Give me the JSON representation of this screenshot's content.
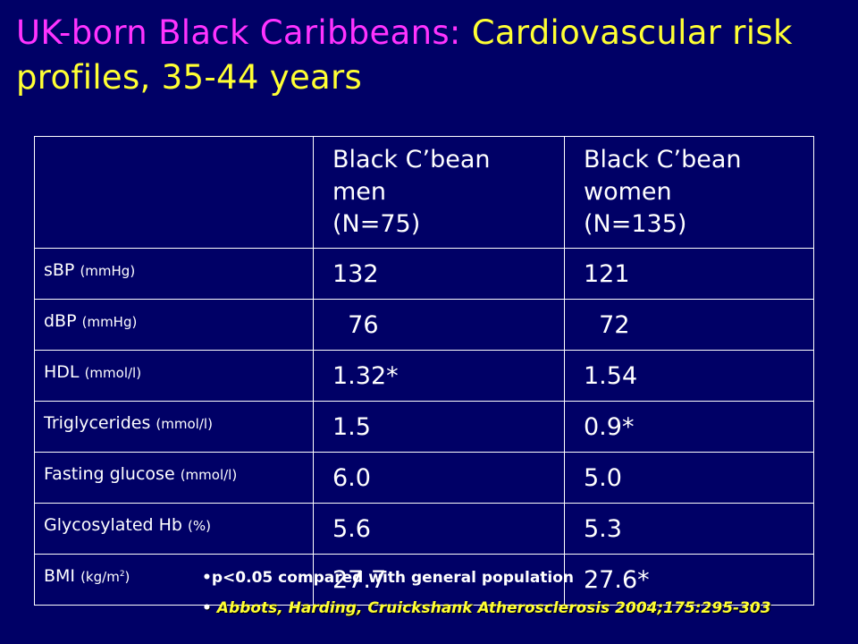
{
  "title": {
    "part1": "UK-born Black Caribbeans: ",
    "part2": "Cardiovascular risk profiles, 35-44 years",
    "color_part1": "#ff33ff",
    "color_part2": "#ffff33"
  },
  "table": {
    "headers": [
      "",
      [
        "Black C’bean",
        "men",
        "(N=75)"
      ],
      [
        "Black C’bean",
        "women",
        "(N=135)"
      ]
    ],
    "rows": [
      {
        "label": "sBP",
        "unit": "(mmHg)",
        "sup": "",
        "unit_tail": "",
        "men": "132",
        "women": "121"
      },
      {
        "label": "dBP",
        "unit": "(mmHg)",
        "sup": "",
        "unit_tail": "",
        "men": "  76",
        "women": "  72"
      },
      {
        "label": "HDL",
        "unit": "(mmol/l)",
        "sup": "",
        "unit_tail": "",
        "men": "1.32*",
        "women": "1.54"
      },
      {
        "label": "Triglycerides",
        "unit": "(mmol/l)",
        "sup": "",
        "unit_tail": "",
        "men": "1.5",
        "women": "0.9*"
      },
      {
        "label": "Fasting glucose",
        "unit": "(mmol/l)",
        "sup": "",
        "unit_tail": "",
        "men": "6.0",
        "women": "5.0"
      },
      {
        "label": "Glycosylated Hb",
        "unit": "(%)",
        "sup": "",
        "unit_tail": "",
        "men": "5.6",
        "women": "5.3"
      },
      {
        "label": "BMI",
        "unit": "(kg/m",
        "sup": "2",
        "unit_tail": ")",
        "men": "27.7",
        "women": "27.6*"
      }
    ]
  },
  "notes": {
    "note1_bullet": "•",
    "note1": "p<0.05 compared with general population",
    "note2_bullet": "•",
    "note2": " Abbots, Harding, Cruickshank Atherosclerosis 2004;175:295-303"
  },
  "colors": {
    "background": "#000066",
    "text": "#ffffff",
    "accent_magenta": "#ff33ff",
    "accent_yellow": "#ffff33"
  }
}
